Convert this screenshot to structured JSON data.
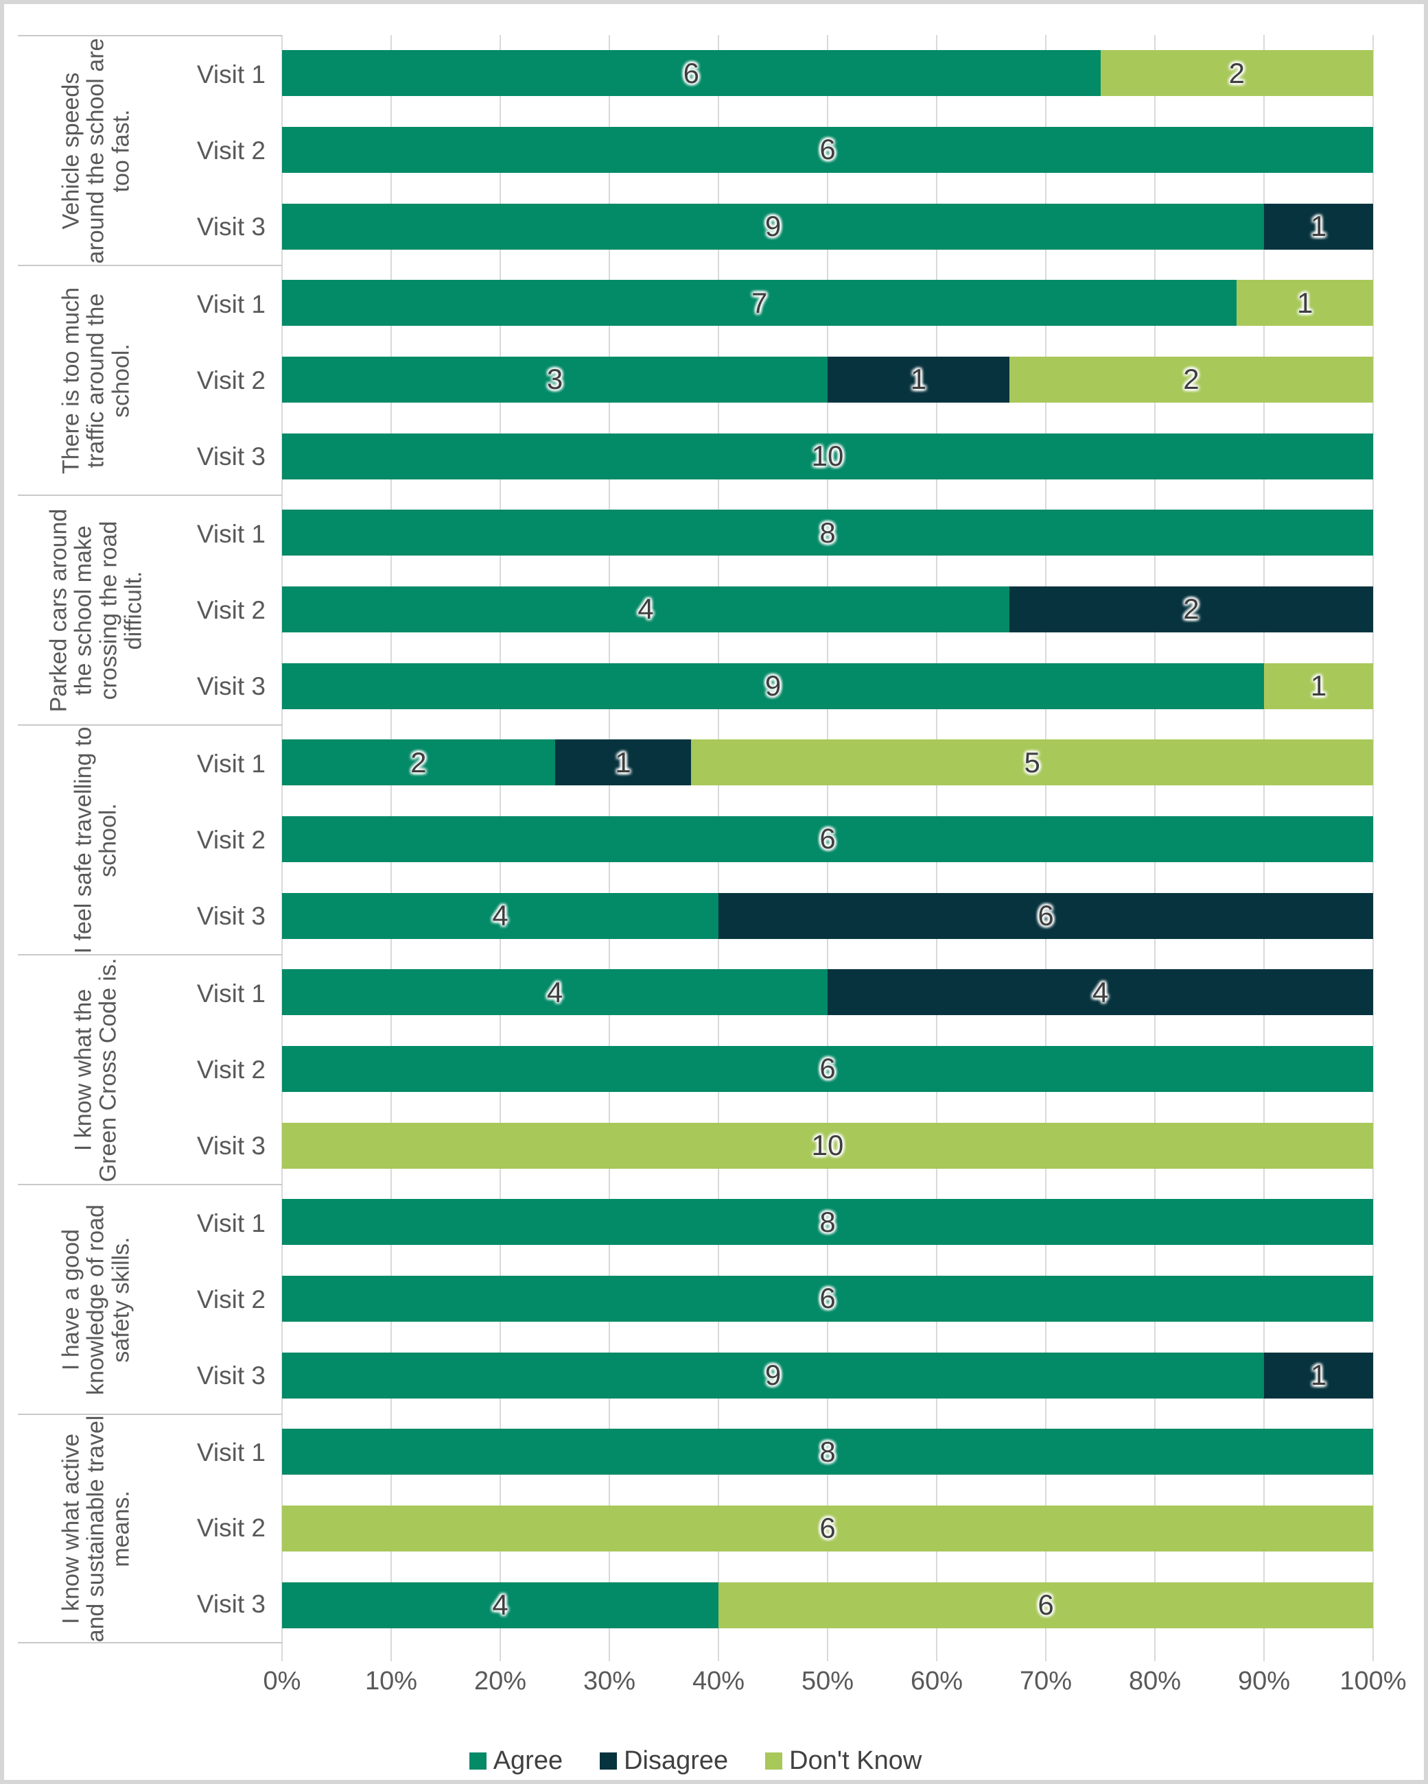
{
  "chart_data": {
    "type": "bar",
    "orientation": "horizontal",
    "stacked": true,
    "units": "respondent counts, bars normalized to 100%",
    "title": "",
    "x_axis": {
      "ticks": [
        "0%",
        "10%",
        "20%",
        "30%",
        "40%",
        "50%",
        "60%",
        "70%",
        "80%",
        "90%",
        "100%"
      ],
      "range": [
        0,
        100
      ],
      "grid": true
    },
    "legend_position": "bottom",
    "legend": [
      {
        "label": "Agree",
        "color": "#038a67"
      },
      {
        "label": "Disagree",
        "color": "#07333e"
      },
      {
        "label": "Don't Know",
        "color": "#a8c85a"
      }
    ],
    "groups": [
      {
        "question": "Vehicle speeds around the school are too fast.",
        "rows": [
          {
            "visit": "Visit 1",
            "segments": [
              {
                "series": "Agree",
                "value": 6
              },
              {
                "series": "Don't Know",
                "value": 2
              }
            ]
          },
          {
            "visit": "Visit 2",
            "segments": [
              {
                "series": "Agree",
                "value": 6
              }
            ]
          },
          {
            "visit": "Visit 3",
            "segments": [
              {
                "series": "Agree",
                "value": 9
              },
              {
                "series": "Disagree",
                "value": 1
              }
            ]
          }
        ]
      },
      {
        "question": "There is too much traffic around the school.",
        "rows": [
          {
            "visit": "Visit 1",
            "segments": [
              {
                "series": "Agree",
                "value": 7
              },
              {
                "series": "Don't Know",
                "value": 1
              }
            ]
          },
          {
            "visit": "Visit 2",
            "segments": [
              {
                "series": "Agree",
                "value": 3
              },
              {
                "series": "Disagree",
                "value": 1
              },
              {
                "series": "Don't Know",
                "value": 2
              }
            ]
          },
          {
            "visit": "Visit 3",
            "segments": [
              {
                "series": "Agree",
                "value": 10
              }
            ]
          }
        ]
      },
      {
        "question": "Parked cars around the school make crossing the road difficult.",
        "rows": [
          {
            "visit": "Visit 1",
            "segments": [
              {
                "series": "Agree",
                "value": 8
              }
            ]
          },
          {
            "visit": "Visit 2",
            "segments": [
              {
                "series": "Agree",
                "value": 4
              },
              {
                "series": "Disagree",
                "value": 2
              }
            ]
          },
          {
            "visit": "Visit 3",
            "segments": [
              {
                "series": "Agree",
                "value": 9
              },
              {
                "series": "Don't Know",
                "value": 1
              }
            ]
          }
        ]
      },
      {
        "question": "I feel safe travelling to school.",
        "rows": [
          {
            "visit": "Visit 1",
            "segments": [
              {
                "series": "Agree",
                "value": 2
              },
              {
                "series": "Disagree",
                "value": 1
              },
              {
                "series": "Don't Know",
                "value": 5
              }
            ]
          },
          {
            "visit": "Visit 2",
            "segments": [
              {
                "series": "Agree",
                "value": 6
              }
            ]
          },
          {
            "visit": "Visit 3",
            "segments": [
              {
                "series": "Agree",
                "value": 4
              },
              {
                "series": "Disagree",
                "value": 6
              }
            ]
          }
        ]
      },
      {
        "question": "I know what the Green Cross Code is.",
        "rows": [
          {
            "visit": "Visit 1",
            "segments": [
              {
                "series": "Agree",
                "value": 4
              },
              {
                "series": "Disagree",
                "value": 4
              }
            ]
          },
          {
            "visit": "Visit 2",
            "segments": [
              {
                "series": "Agree",
                "value": 6
              }
            ]
          },
          {
            "visit": "Visit 3",
            "segments": [
              {
                "series": "Don't Know",
                "value": 10
              }
            ]
          }
        ]
      },
      {
        "question": "I have a good knowledge of road safety skills.",
        "rows": [
          {
            "visit": "Visit 1",
            "segments": [
              {
                "series": "Agree",
                "value": 8
              }
            ]
          },
          {
            "visit": "Visit 2",
            "segments": [
              {
                "series": "Agree",
                "value": 6
              }
            ]
          },
          {
            "visit": "Visit 3",
            "segments": [
              {
                "series": "Agree",
                "value": 9
              },
              {
                "series": "Disagree",
                "value": 1
              }
            ]
          }
        ]
      },
      {
        "question": "I know what active and sustainable travel means.",
        "rows": [
          {
            "visit": "Visit 1",
            "segments": [
              {
                "series": "Agree",
                "value": 8
              }
            ]
          },
          {
            "visit": "Visit 2",
            "segments": [
              {
                "series": "Don't Know",
                "value": 6
              }
            ]
          },
          {
            "visit": "Visit 3",
            "segments": [
              {
                "series": "Agree",
                "value": 4
              },
              {
                "series": "Don't Know",
                "value": 6
              }
            ]
          }
        ]
      }
    ],
    "colors": {
      "gridline": "#d9d9d9",
      "label_divider": "#c9c9c9",
      "axis_text": "#595959",
      "data_label_text": "#3f3f3f",
      "frame": "#d6d6d6"
    }
  }
}
